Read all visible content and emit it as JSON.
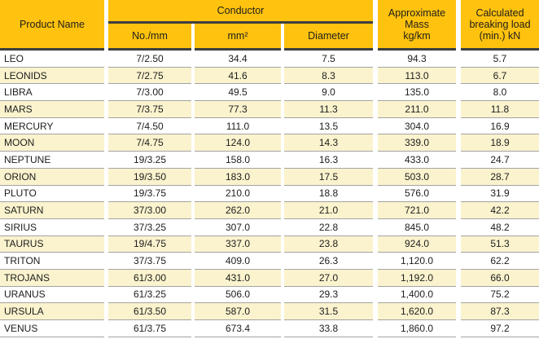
{
  "colors": {
    "header_yellow": "#FFC20E",
    "alt_row_cream": "#FAF3CE",
    "header_border_dark": "#3E3E3E",
    "row_border_gray": "#A3A3A3",
    "text": "#1D1D1B"
  },
  "table": {
    "header": {
      "product_name": "Product Name",
      "conductor_group": "Conductor",
      "conductor_no_mm": "No./mm",
      "conductor_mm2": "mm²",
      "conductor_diameter": "Diameter",
      "approx_mass": "Approximate\nMass\nkg/km",
      "breaking_load": "Calculated\nbreaking load\n(min.) kN"
    },
    "rows": [
      {
        "name": "LEO",
        "no_mm": "7/2.50",
        "mm2": "34.4",
        "diameter": "7.5",
        "mass": "94.3",
        "breaking_load": "5.7"
      },
      {
        "name": "LEONIDS",
        "no_mm": "7/2.75",
        "mm2": "41.6",
        "diameter": "8.3",
        "mass": "113.0",
        "breaking_load": "6.7"
      },
      {
        "name": "LIBRA",
        "no_mm": "7/3.00",
        "mm2": "49.5",
        "diameter": "9.0",
        "mass": "135.0",
        "breaking_load": "8.0"
      },
      {
        "name": "MARS",
        "no_mm": "7/3.75",
        "mm2": "77.3",
        "diameter": "11.3",
        "mass": "211.0",
        "breaking_load": "11.8"
      },
      {
        "name": "MERCURY",
        "no_mm": "7/4.50",
        "mm2": "111.0",
        "diameter": "13.5",
        "mass": "304.0",
        "breaking_load": "16.9"
      },
      {
        "name": "MOON",
        "no_mm": "7/4.75",
        "mm2": "124.0",
        "diameter": "14.3",
        "mass": "339.0",
        "breaking_load": "18.9"
      },
      {
        "name": "NEPTUNE",
        "no_mm": "19/3.25",
        "mm2": "158.0",
        "diameter": "16.3",
        "mass": "433.0",
        "breaking_load": "24.7"
      },
      {
        "name": "ORION",
        "no_mm": "19/3.50",
        "mm2": "183.0",
        "diameter": "17.5",
        "mass": "503.0",
        "breaking_load": "28.7"
      },
      {
        "name": "PLUTO",
        "no_mm": "19/3.75",
        "mm2": "210.0",
        "diameter": "18.8",
        "mass": "576.0",
        "breaking_load": "31.9"
      },
      {
        "name": "SATURN",
        "no_mm": "37/3.00",
        "mm2": "262.0",
        "diameter": "21.0",
        "mass": "721.0",
        "breaking_load": "42.2"
      },
      {
        "name": "SIRIUS",
        "no_mm": "37/3.25",
        "mm2": "307.0",
        "diameter": "22.8",
        "mass": "845.0",
        "breaking_load": "48.2"
      },
      {
        "name": "TAURUS",
        "no_mm": "19/4.75",
        "mm2": "337.0",
        "diameter": "23.8",
        "mass": "924.0",
        "breaking_load": "51.3"
      },
      {
        "name": "TRITON",
        "no_mm": "37/3.75",
        "mm2": "409.0",
        "diameter": "26.3",
        "mass": "1,120.0",
        "breaking_load": "62.2"
      },
      {
        "name": "TROJANS",
        "no_mm": "61/3.00",
        "mm2": "431.0",
        "diameter": "27.0",
        "mass": "1,192.0",
        "breaking_load": "66.0"
      },
      {
        "name": "URANUS",
        "no_mm": "61/3.25",
        "mm2": "506.0",
        "diameter": "29.3",
        "mass": "1,400.0",
        "breaking_load": "75.2"
      },
      {
        "name": "URSULA",
        "no_mm": "61/3.50",
        "mm2": "587.0",
        "diameter": "31.5",
        "mass": "1,620.0",
        "breaking_load": "87.3"
      },
      {
        "name": "VENUS",
        "no_mm": "61/3.75",
        "mm2": "673.4",
        "diameter": "33.8",
        "mass": "1,860.0",
        "breaking_load": "97.2"
      }
    ]
  }
}
